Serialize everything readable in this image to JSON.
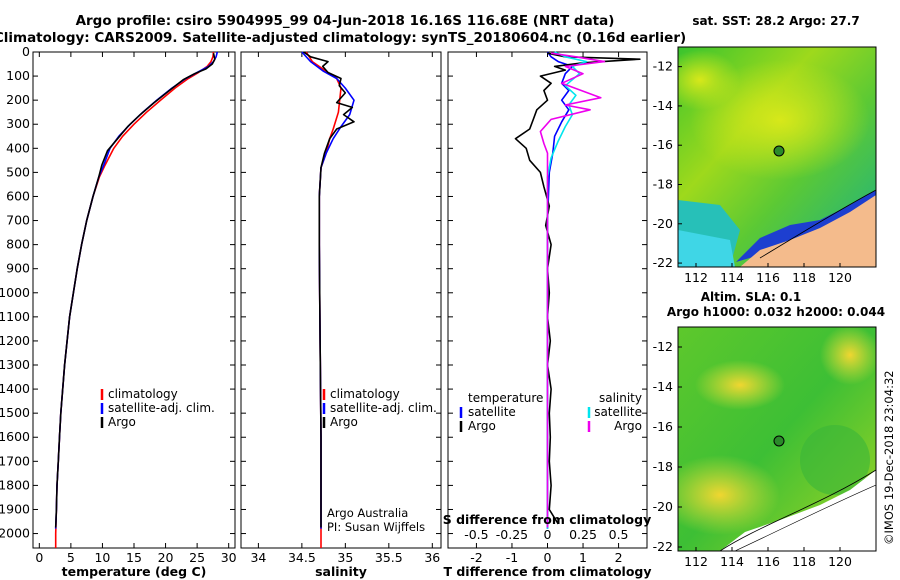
{
  "header": {
    "line1": "Argo profile: csiro 5904995_99 04-Jun-2018 16.16S 116.68E (NRT data)",
    "line2": "Climatology: CARS2009. Satellite-adjusted climatology: synTS_20180604.nc (0.16d earlier)"
  },
  "colors": {
    "climatology": "#ff0000",
    "satellite": "#0000ff",
    "argo": "#000000",
    "sat_cyan": "#00e5ee",
    "argo_magenta": "#ee00ee",
    "land": "#f4bb8c"
  },
  "chart_data": [
    {
      "type": "line",
      "xlabel": "temperature (deg C)",
      "xlim": [
        -1,
        31
      ],
      "xticks": [
        0,
        5,
        10,
        15,
        20,
        25,
        30
      ],
      "ylim": [
        2060,
        0
      ],
      "yticks": [
        0,
        100,
        200,
        300,
        400,
        500,
        600,
        700,
        800,
        900,
        1000,
        1100,
        1200,
        1300,
        1400,
        1500,
        1600,
        1700,
        1800,
        1900,
        2000
      ],
      "legend": [
        "climatology",
        "satellite-adj. clim.",
        "Argo"
      ],
      "series": [
        {
          "name": "climatology",
          "color": "#ff0000",
          "points": [
            [
              27.6,
              0
            ],
            [
              27.5,
              20
            ],
            [
              27.2,
              40
            ],
            [
              26.6,
              60
            ],
            [
              25.2,
              85
            ],
            [
              23.6,
              110
            ],
            [
              21.5,
              150
            ],
            [
              19.2,
              200
            ],
            [
              17.0,
              250
            ],
            [
              15.0,
              300
            ],
            [
              13.2,
              350
            ],
            [
              11.8,
              400
            ],
            [
              10.4,
              470
            ],
            [
              9.5,
              520
            ],
            [
              8.5,
              600
            ],
            [
              7.5,
              700
            ],
            [
              6.7,
              800
            ],
            [
              6.0,
              900
            ],
            [
              5.4,
              1000
            ],
            [
              4.8,
              1100
            ],
            [
              4.4,
              1200
            ],
            [
              4.0,
              1300
            ],
            [
              3.7,
              1400
            ],
            [
              3.4,
              1500
            ],
            [
              3.2,
              1600
            ],
            [
              3.0,
              1700
            ],
            [
              2.8,
              1800
            ],
            [
              2.7,
              1900
            ],
            [
              2.6,
              2000
            ],
            [
              2.6,
              2060
            ]
          ]
        },
        {
          "name": "satellite-adj. clim.",
          "color": "#0000ff",
          "points": [
            [
              28.2,
              0
            ],
            [
              28.0,
              20
            ],
            [
              27.6,
              40
            ],
            [
              26.8,
              60
            ],
            [
              25.0,
              85
            ],
            [
              23.2,
              110
            ],
            [
              21.0,
              150
            ],
            [
              18.6,
              200
            ],
            [
              16.4,
              250
            ],
            [
              14.4,
              300
            ],
            [
              12.6,
              350
            ],
            [
              11.2,
              400
            ],
            [
              10.2,
              470
            ],
            [
              9.4,
              520
            ],
            [
              8.5,
              600
            ],
            [
              7.5,
              700
            ],
            [
              6.7,
              800
            ],
            [
              6.0,
              900
            ],
            [
              5.4,
              1000
            ],
            [
              4.8,
              1100
            ],
            [
              4.4,
              1200
            ],
            [
              4.0,
              1300
            ],
            [
              3.7,
              1400
            ],
            [
              3.4,
              1500
            ],
            [
              3.2,
              1600
            ],
            [
              3.0,
              1700
            ],
            [
              2.8,
              1800
            ],
            [
              2.7,
              1900
            ],
            [
              2.6,
              1980
            ]
          ]
        },
        {
          "name": "Argo",
          "color": "#000000",
          "points": [
            [
              27.6,
              5
            ],
            [
              27.8,
              30
            ],
            [
              27.4,
              50
            ],
            [
              26.4,
              70
            ],
            [
              24.6,
              90
            ],
            [
              22.8,
              115
            ],
            [
              20.6,
              160
            ],
            [
              18.2,
              210
            ],
            [
              16.0,
              260
            ],
            [
              14.0,
              310
            ],
            [
              12.4,
              360
            ],
            [
              10.8,
              410
            ],
            [
              9.9,
              470
            ],
            [
              9.4,
              520
            ],
            [
              8.5,
              600
            ],
            [
              7.5,
              700
            ],
            [
              6.7,
              800
            ],
            [
              6.0,
              900
            ],
            [
              5.4,
              1000
            ],
            [
              4.8,
              1100
            ],
            [
              4.4,
              1200
            ],
            [
              4.0,
              1300
            ],
            [
              3.7,
              1400
            ],
            [
              3.4,
              1500
            ],
            [
              3.2,
              1600
            ],
            [
              3.0,
              1700
            ],
            [
              2.8,
              1800
            ],
            [
              2.7,
              1900
            ],
            [
              2.6,
              1975
            ]
          ]
        }
      ]
    },
    {
      "type": "line",
      "xlabel": "salinity",
      "xlim": [
        33.8,
        36.1
      ],
      "xticks": [
        34,
        34.5,
        35,
        35.5,
        36
      ],
      "legend": [
        "climatology",
        "satellite-adj. clim.",
        "Argo"
      ],
      "annotation": [
        "Argo Australia",
        "PI: Susan Wijffels"
      ],
      "series": [
        {
          "name": "climatology",
          "color": "#ff0000",
          "points": [
            [
              34.55,
              0
            ],
            [
              34.62,
              40
            ],
            [
              34.78,
              80
            ],
            [
              34.9,
              110
            ],
            [
              34.95,
              150
            ],
            [
              34.92,
              250
            ],
            [
              34.86,
              320
            ],
            [
              34.82,
              360
            ],
            [
              34.78,
              420
            ],
            [
              34.72,
              480
            ],
            [
              34.7,
              600
            ],
            [
              34.7,
              800
            ],
            [
              34.71,
              1200
            ],
            [
              34.72,
              1600
            ],
            [
              34.72,
              2000
            ],
            [
              34.72,
              2060
            ]
          ]
        },
        {
          "name": "satellite-adj. clim.",
          "color": "#0000ff",
          "points": [
            [
              34.5,
              0
            ],
            [
              34.6,
              40
            ],
            [
              34.75,
              80
            ],
            [
              34.9,
              110
            ],
            [
              35.0,
              150
            ],
            [
              35.1,
              200
            ],
            [
              35.05,
              260
            ],
            [
              34.95,
              310
            ],
            [
              34.86,
              360
            ],
            [
              34.78,
              420
            ],
            [
              34.72,
              480
            ],
            [
              34.7,
              600
            ],
            [
              34.7,
              800
            ],
            [
              34.71,
              1200
            ],
            [
              34.72,
              1600
            ],
            [
              34.72,
              1980
            ]
          ]
        },
        {
          "name": "Argo",
          "color": "#000000",
          "points": [
            [
              34.52,
              0
            ],
            [
              34.6,
              20
            ],
            [
              34.8,
              40
            ],
            [
              34.74,
              60
            ],
            [
              34.8,
              85
            ],
            [
              34.95,
              110
            ],
            [
              34.93,
              140
            ],
            [
              35.0,
              170
            ],
            [
              34.9,
              210
            ],
            [
              35.08,
              230
            ],
            [
              34.98,
              260
            ],
            [
              35.1,
              290
            ],
            [
              34.9,
              320
            ],
            [
              34.82,
              360
            ],
            [
              34.76,
              420
            ],
            [
              34.72,
              480
            ],
            [
              34.7,
              600
            ],
            [
              34.7,
              800
            ],
            [
              34.71,
              1200
            ],
            [
              34.72,
              1600
            ],
            [
              34.72,
              1975
            ]
          ]
        }
      ]
    },
    {
      "type": "line",
      "xlabel": "T difference from climatology",
      "xlabel2": "S difference from climatology",
      "xlim": [
        -2.8,
        2.8
      ],
      "xticks": [
        -2,
        -1,
        0,
        1,
        2
      ],
      "xticks2": [
        "-0.5",
        "-0.25",
        "0",
        "0.25",
        "0.5"
      ],
      "legend_left": {
        "title": "temperature",
        "items": [
          "satellite",
          "Argo"
        ]
      },
      "legend_right": {
        "title": "salinity",
        "items": [
          "satellite",
          "Argo"
        ]
      },
      "series": [
        {
          "name": "T satellite",
          "color": "#0000ff",
          "points": [
            [
              0,
              0
            ],
            [
              0.1,
              20
            ],
            [
              0.3,
              40
            ],
            [
              0.7,
              60
            ],
            [
              0.5,
              90
            ],
            [
              0.4,
              130
            ],
            [
              0.6,
              160
            ],
            [
              0.4,
              200
            ],
            [
              0.6,
              240
            ],
            [
              0.4,
              290
            ],
            [
              0.2,
              350
            ],
            [
              0.15,
              420
            ],
            [
              0.05,
              500
            ],
            [
              0,
              700
            ],
            [
              0,
              1200
            ],
            [
              0,
              1980
            ]
          ]
        },
        {
          "name": "T Argo",
          "color": "#000000",
          "points": [
            [
              0,
              5
            ],
            [
              0.5,
              20
            ],
            [
              2.6,
              30
            ],
            [
              1.0,
              45
            ],
            [
              0.2,
              60
            ],
            [
              0.5,
              75
            ],
            [
              -0.2,
              100
            ],
            [
              0.1,
              130
            ],
            [
              -0.1,
              160
            ],
            [
              0.0,
              200
            ],
            [
              -0.3,
              240
            ],
            [
              -0.4,
              280
            ],
            [
              -0.5,
              320
            ],
            [
              -0.9,
              360
            ],
            [
              -0.6,
              400
            ],
            [
              -0.5,
              450
            ],
            [
              -0.2,
              500
            ],
            [
              -0.1,
              560
            ],
            [
              0.05,
              640
            ],
            [
              -0.05,
              720
            ],
            [
              0.1,
              800
            ],
            [
              0,
              900
            ],
            [
              0.05,
              1000
            ],
            [
              0,
              1100
            ],
            [
              0.08,
              1200
            ],
            [
              0,
              1300
            ],
            [
              0.1,
              1400
            ],
            [
              0.05,
              1500
            ],
            [
              0.08,
              1600
            ],
            [
              0.05,
              1700
            ],
            [
              0.1,
              1800
            ],
            [
              0.05,
              1900
            ],
            [
              0.3,
              1960
            ]
          ]
        },
        {
          "name": "S satellite",
          "color": "#00e5ee",
          "points": [
            [
              0.2,
              0
            ],
            [
              0.5,
              20
            ],
            [
              1.1,
              40
            ],
            [
              0.7,
              60
            ],
            [
              0.9,
              90
            ],
            [
              0.5,
              140
            ],
            [
              0.8,
              180
            ],
            [
              0.6,
              220
            ],
            [
              0.7,
              260
            ],
            [
              0.5,
              310
            ],
            [
              0.3,
              370
            ],
            [
              0.1,
              440
            ],
            [
              0.0,
              520
            ],
            [
              0,
              800
            ],
            [
              0,
              1200
            ],
            [
              0,
              1980
            ]
          ]
        },
        {
          "name": "S Argo",
          "color": "#ee00ee",
          "points": [
            [
              0.1,
              5
            ],
            [
              0.8,
              20
            ],
            [
              1.6,
              40
            ],
            [
              0.5,
              60
            ],
            [
              1.0,
              90
            ],
            [
              0.4,
              130
            ],
            [
              1.5,
              190
            ],
            [
              0.5,
              220
            ],
            [
              1.2,
              240
            ],
            [
              0.1,
              280
            ],
            [
              -0.2,
              330
            ],
            [
              -0.1,
              380
            ],
            [
              0.0,
              420
            ],
            [
              0,
              800
            ],
            [
              0,
              1200
            ],
            [
              0,
              1975
            ]
          ]
        }
      ]
    }
  ],
  "maps": {
    "sst": {
      "title": "sat. SST: 28.2 Argo: 27.7",
      "xticks": [
        "112",
        "114",
        "116",
        "118",
        "120"
      ],
      "yticks": [
        "-12",
        "-14",
        "-16",
        "-18",
        "-20",
        "-22"
      ],
      "xlim": [
        111,
        122
      ],
      "ylim": [
        -22.2,
        -11
      ]
    },
    "sla": {
      "title1": "Altim. SLA: 0.1",
      "title2": "Argo h1000: 0.032 h2000: 0.044",
      "xticks": [
        "112",
        "114",
        "116",
        "118",
        "120"
      ],
      "yticks": [
        "-12",
        "-14",
        "-16",
        "-18",
        "-20",
        "-22"
      ],
      "xlim": [
        111,
        122
      ],
      "ylim": [
        -22.2,
        -11
      ]
    },
    "argo_position": {
      "lon": 116.68,
      "lat": -16.16
    }
  },
  "credit": "©IMOS 19-Dec-2018 23:04:32"
}
